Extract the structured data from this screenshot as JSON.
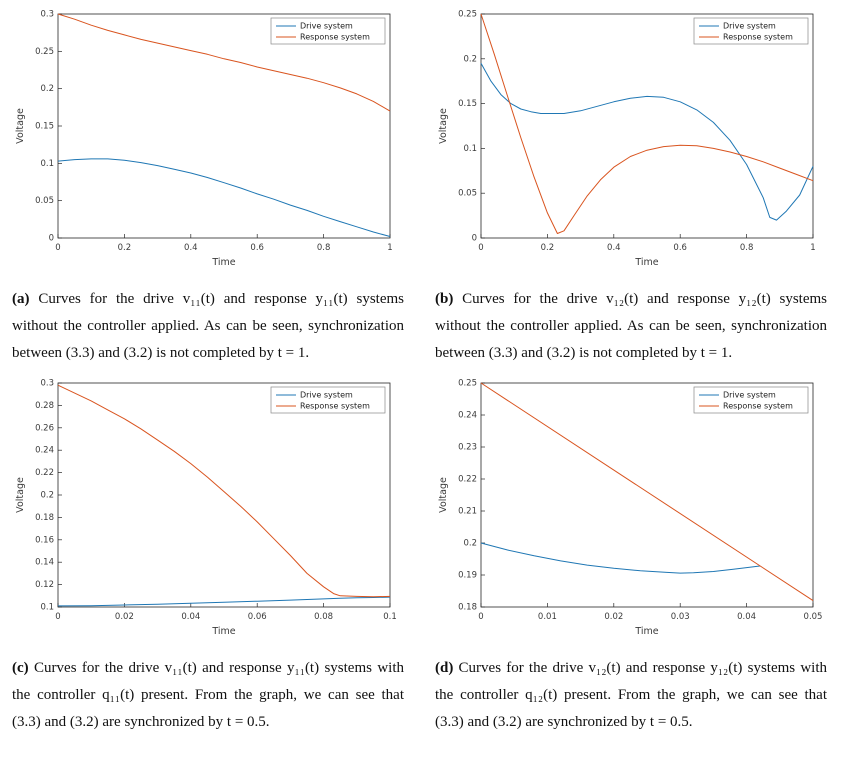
{
  "page": {
    "background": "#ffffff"
  },
  "colors": {
    "drive": "#1f77b4",
    "response": "#d9541f",
    "axis": "#262626"
  },
  "figures": [
    {
      "caption_label": "(a)",
      "caption_text": "Curves for the drive v₁₁(t) and response y₁₁(t) systems without the controller applied. As can be seen, synchronization between (3.3) and (3.2) is not completed by t = 1."
    },
    {
      "caption_label": "(b)",
      "caption_text": "Curves for the drive v₁₂(t) and response y₁₂(t) systems without the controller applied. As can be seen, synchronization between (3.3) and (3.2) is not completed by t = 1."
    },
    {
      "caption_label": "(c)",
      "caption_text": "Curves for the drive v₁₁(t) and response y₁₁(t) systems with the controller q₁₁(t) present. From the graph, we can see that (3.3) and (3.2) are synchronized by t = 0.5."
    },
    {
      "caption_label": "(d)",
      "caption_text": "Curves for the drive v₁₂(t) and response y₁₂(t) systems with the controller q₁₂(t) present. From the graph, we can see that (3.3) and (3.2) are synchronized by t = 0.5."
    }
  ],
  "chart_data": [
    {
      "type": "line",
      "title": "",
      "xlabel": "Time",
      "ylabel": "Voltage",
      "xlim": [
        0,
        1
      ],
      "ylim": [
        0,
        0.3
      ],
      "xtick_labels": [
        "0",
        "0.2",
        "0.4",
        "0.6",
        "0.8",
        "1"
      ],
      "ytick_labels": [
        "0",
        "0.05",
        "0.1",
        "0.15",
        "0.2",
        "0.25",
        "0.3"
      ],
      "grid": false,
      "legend_position": "top-right",
      "series": [
        {
          "name": "Drive system",
          "color": "#1f77b4",
          "points": [
            [
              0,
              0.103
            ],
            [
              0.05,
              0.105
            ],
            [
              0.1,
              0.106
            ],
            [
              0.15,
              0.106
            ],
            [
              0.2,
              0.104
            ],
            [
              0.25,
              0.101
            ],
            [
              0.3,
              0.097
            ],
            [
              0.35,
              0.092
            ],
            [
              0.4,
              0.087
            ],
            [
              0.45,
              0.081
            ],
            [
              0.5,
              0.074
            ],
            [
              0.55,
              0.067
            ],
            [
              0.6,
              0.059
            ],
            [
              0.65,
              0.052
            ],
            [
              0.7,
              0.044
            ],
            [
              0.75,
              0.037
            ],
            [
              0.8,
              0.029
            ],
            [
              0.85,
              0.022
            ],
            [
              0.9,
              0.015
            ],
            [
              0.95,
              0.008
            ],
            [
              1,
              0.002
            ]
          ]
        },
        {
          "name": "Response system",
          "color": "#d9541f",
          "points": [
            [
              0,
              0.3
            ],
            [
              0.05,
              0.293
            ],
            [
              0.1,
              0.285
            ],
            [
              0.15,
              0.278
            ],
            [
              0.2,
              0.272
            ],
            [
              0.25,
              0.266
            ],
            [
              0.3,
              0.261
            ],
            [
              0.35,
              0.256
            ],
            [
              0.4,
              0.251
            ],
            [
              0.45,
              0.246
            ],
            [
              0.5,
              0.24
            ],
            [
              0.55,
              0.235
            ],
            [
              0.6,
              0.229
            ],
            [
              0.65,
              0.224
            ],
            [
              0.7,
              0.219
            ],
            [
              0.75,
              0.214
            ],
            [
              0.8,
              0.208
            ],
            [
              0.85,
              0.201
            ],
            [
              0.9,
              0.193
            ],
            [
              0.95,
              0.183
            ],
            [
              1,
              0.17
            ]
          ]
        }
      ]
    },
    {
      "type": "line",
      "title": "",
      "xlabel": "Time",
      "ylabel": "Voltage",
      "xlim": [
        0,
        1
      ],
      "ylim": [
        0,
        0.25
      ],
      "xtick_labels": [
        "0",
        "0.2",
        "0.4",
        "0.6",
        "0.8",
        "1"
      ],
      "ytick_labels": [
        "0",
        "0.05",
        "0.1",
        "0.15",
        "0.2",
        "0.25"
      ],
      "grid": false,
      "legend_position": "top-right",
      "series": [
        {
          "name": "Drive system",
          "color": "#1f77b4",
          "points": [
            [
              0,
              0.195
            ],
            [
              0.03,
              0.175
            ],
            [
              0.06,
              0.16
            ],
            [
              0.09,
              0.15
            ],
            [
              0.12,
              0.144
            ],
            [
              0.15,
              0.141
            ],
            [
              0.18,
              0.139
            ],
            [
              0.21,
              0.139
            ],
            [
              0.25,
              0.139
            ],
            [
              0.3,
              0.142
            ],
            [
              0.35,
              0.147
            ],
            [
              0.4,
              0.152
            ],
            [
              0.45,
              0.156
            ],
            [
              0.5,
              0.158
            ],
            [
              0.55,
              0.157
            ],
            [
              0.6,
              0.152
            ],
            [
              0.65,
              0.143
            ],
            [
              0.7,
              0.129
            ],
            [
              0.75,
              0.109
            ],
            [
              0.8,
              0.082
            ],
            [
              0.85,
              0.045
            ],
            [
              0.87,
              0.023
            ],
            [
              0.89,
              0.02
            ],
            [
              0.92,
              0.03
            ],
            [
              0.96,
              0.048
            ],
            [
              1,
              0.08
            ]
          ]
        },
        {
          "name": "Response system",
          "color": "#d9541f",
          "points": [
            [
              0,
              0.25
            ],
            [
              0.04,
              0.205
            ],
            [
              0.08,
              0.158
            ],
            [
              0.12,
              0.112
            ],
            [
              0.16,
              0.068
            ],
            [
              0.2,
              0.028
            ],
            [
              0.23,
              0.005
            ],
            [
              0.25,
              0.008
            ],
            [
              0.28,
              0.025
            ],
            [
              0.32,
              0.047
            ],
            [
              0.36,
              0.065
            ],
            [
              0.4,
              0.079
            ],
            [
              0.45,
              0.091
            ],
            [
              0.5,
              0.098
            ],
            [
              0.55,
              0.102
            ],
            [
              0.6,
              0.1035
            ],
            [
              0.65,
              0.103
            ],
            [
              0.7,
              0.1
            ],
            [
              0.75,
              0.096
            ],
            [
              0.8,
              0.091
            ],
            [
              0.85,
              0.085
            ],
            [
              0.9,
              0.078
            ],
            [
              0.95,
              0.071
            ],
            [
              1,
              0.064
            ]
          ]
        }
      ]
    },
    {
      "type": "line",
      "title": "",
      "xlabel": "Time",
      "ylabel": "Voltage",
      "xlim": [
        0,
        0.1
      ],
      "ylim": [
        0.1,
        0.3
      ],
      "xtick_labels": [
        "0",
        "0.02",
        "0.04",
        "0.06",
        "0.08",
        "0.1"
      ],
      "ytick_labels": [
        "0.1",
        "0.12",
        "0.14",
        "0.16",
        "0.18",
        "0.2",
        "0.22",
        "0.24",
        "0.26",
        "0.28",
        "0.3"
      ],
      "grid": false,
      "legend_position": "top-right",
      "series": [
        {
          "name": "Drive system",
          "color": "#1f77b4",
          "points": [
            [
              0,
              0.101
            ],
            [
              0.01,
              0.1012
            ],
            [
              0.02,
              0.1018
            ],
            [
              0.03,
              0.1025
            ],
            [
              0.04,
              0.1033
            ],
            [
              0.05,
              0.1042
            ],
            [
              0.06,
              0.1052
            ],
            [
              0.07,
              0.1062
            ],
            [
              0.08,
              0.1072
            ],
            [
              0.085,
              0.1078
            ],
            [
              0.09,
              0.1082
            ],
            [
              0.095,
              0.1085
            ],
            [
              0.1,
              0.1088
            ]
          ]
        },
        {
          "name": "Response system",
          "color": "#d9541f",
          "points": [
            [
              0,
              0.298
            ],
            [
              0.005,
              0.291
            ],
            [
              0.01,
              0.284
            ],
            [
              0.015,
              0.276
            ],
            [
              0.02,
              0.268
            ],
            [
              0.025,
              0.259
            ],
            [
              0.03,
              0.249
            ],
            [
              0.035,
              0.239
            ],
            [
              0.04,
              0.228
            ],
            [
              0.045,
              0.216
            ],
            [
              0.05,
              0.203
            ],
            [
              0.055,
              0.19
            ],
            [
              0.06,
              0.176
            ],
            [
              0.065,
              0.161
            ],
            [
              0.07,
              0.146
            ],
            [
              0.075,
              0.13
            ],
            [
              0.08,
              0.118
            ],
            [
              0.083,
              0.112
            ],
            [
              0.085,
              0.11
            ],
            [
              0.09,
              0.1095
            ],
            [
              0.095,
              0.1092
            ],
            [
              0.1,
              0.1095
            ]
          ]
        }
      ]
    },
    {
      "type": "line",
      "title": "",
      "xlabel": "Time",
      "ylabel": "Voltage",
      "xlim": [
        0,
        0.05
      ],
      "ylim": [
        0.18,
        0.25
      ],
      "xtick_labels": [
        "0",
        "0.01",
        "0.02",
        "0.03",
        "0.04",
        "0.05"
      ],
      "ytick_labels": [
        "0.18",
        "0.19",
        "0.2",
        "0.21",
        "0.22",
        "0.23",
        "0.24",
        "0.25"
      ],
      "grid": false,
      "legend_position": "top-right",
      "series": [
        {
          "name": "Drive system",
          "color": "#1f77b4",
          "points": [
            [
              0,
              0.2
            ],
            [
              0.004,
              0.1978
            ],
            [
              0.008,
              0.196
            ],
            [
              0.012,
              0.1944
            ],
            [
              0.016,
              0.1931
            ],
            [
              0.02,
              0.1921
            ],
            [
              0.024,
              0.1913
            ],
            [
              0.028,
              0.1908
            ],
            [
              0.03,
              0.1906
            ],
            [
              0.032,
              0.1907
            ],
            [
              0.035,
              0.1911
            ],
            [
              0.038,
              0.1918
            ],
            [
              0.042,
              0.1928
            ]
          ]
        },
        {
          "name": "Response system",
          "color": "#d9541f",
          "points": [
            [
              0,
              0.25
            ],
            [
              0.05,
              0.182
            ]
          ]
        }
      ]
    }
  ]
}
